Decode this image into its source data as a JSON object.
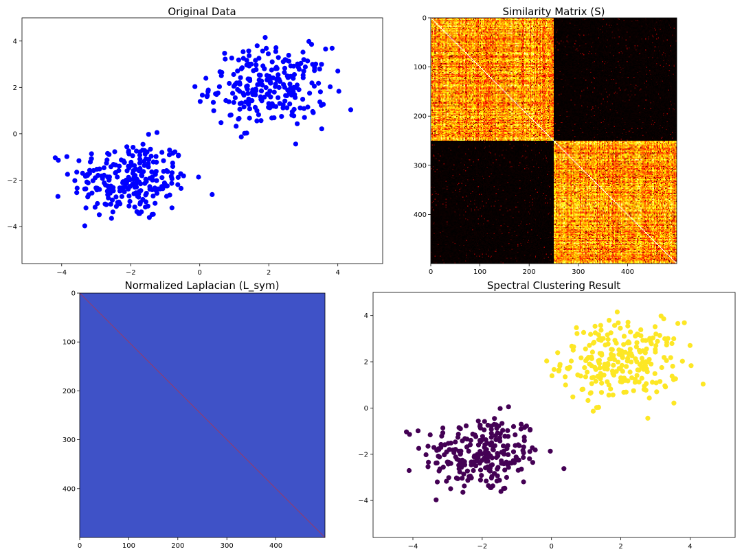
{
  "chart_data": [
    {
      "type": "scatter",
      "title": "Original Data",
      "xlim": [
        -5.15,
        5.3
      ],
      "ylim": [
        -5.6,
        5.0
      ],
      "xticks": [
        -4,
        -2,
        0,
        2,
        4
      ],
      "yticks": [
        -4,
        -2,
        0,
        2,
        4
      ],
      "color": "#0000ff",
      "clusters": [
        {
          "center": [
            -2.0,
            -2.0
          ],
          "count": 250,
          "spread": 0.85
        },
        {
          "center": [
            2.0,
            2.0
          ],
          "count": 250,
          "spread": 0.85
        }
      ]
    },
    {
      "type": "heatmap",
      "title": "Similarity Matrix (S)",
      "size": 500,
      "colormap": "hot",
      "blocks": [
        [
          0,
          250
        ],
        [
          250,
          500
        ]
      ],
      "xticks": [
        0,
        100,
        200,
        300,
        400
      ],
      "yticks": [
        0,
        100,
        200,
        300,
        400
      ]
    },
    {
      "type": "heatmap",
      "title": "Normalized Laplacian (L_sym)",
      "size": 500,
      "colormap": "coolwarm",
      "background_color": "#3f52c7",
      "diagonal_color": "#b4334a",
      "xticks": [
        0,
        100,
        200,
        300,
        400
      ],
      "yticks": [
        0,
        100,
        200,
        300,
        400
      ]
    },
    {
      "type": "scatter",
      "title": "Spectral Clustering Result",
      "xlim": [
        -5.15,
        5.3
      ],
      "ylim": [
        -5.6,
        5.0
      ],
      "xticks": [
        -4,
        -2,
        0,
        2,
        4
      ],
      "yticks": [
        -4,
        -2,
        0,
        2,
        4
      ],
      "cluster_colors": [
        "#440154",
        "#fde725"
      ],
      "clusters": [
        {
          "center": [
            -2.0,
            -2.0
          ],
          "count": 250,
          "spread": 0.85
        },
        {
          "center": [
            2.0,
            2.0
          ],
          "count": 250,
          "spread": 0.85
        }
      ]
    }
  ]
}
